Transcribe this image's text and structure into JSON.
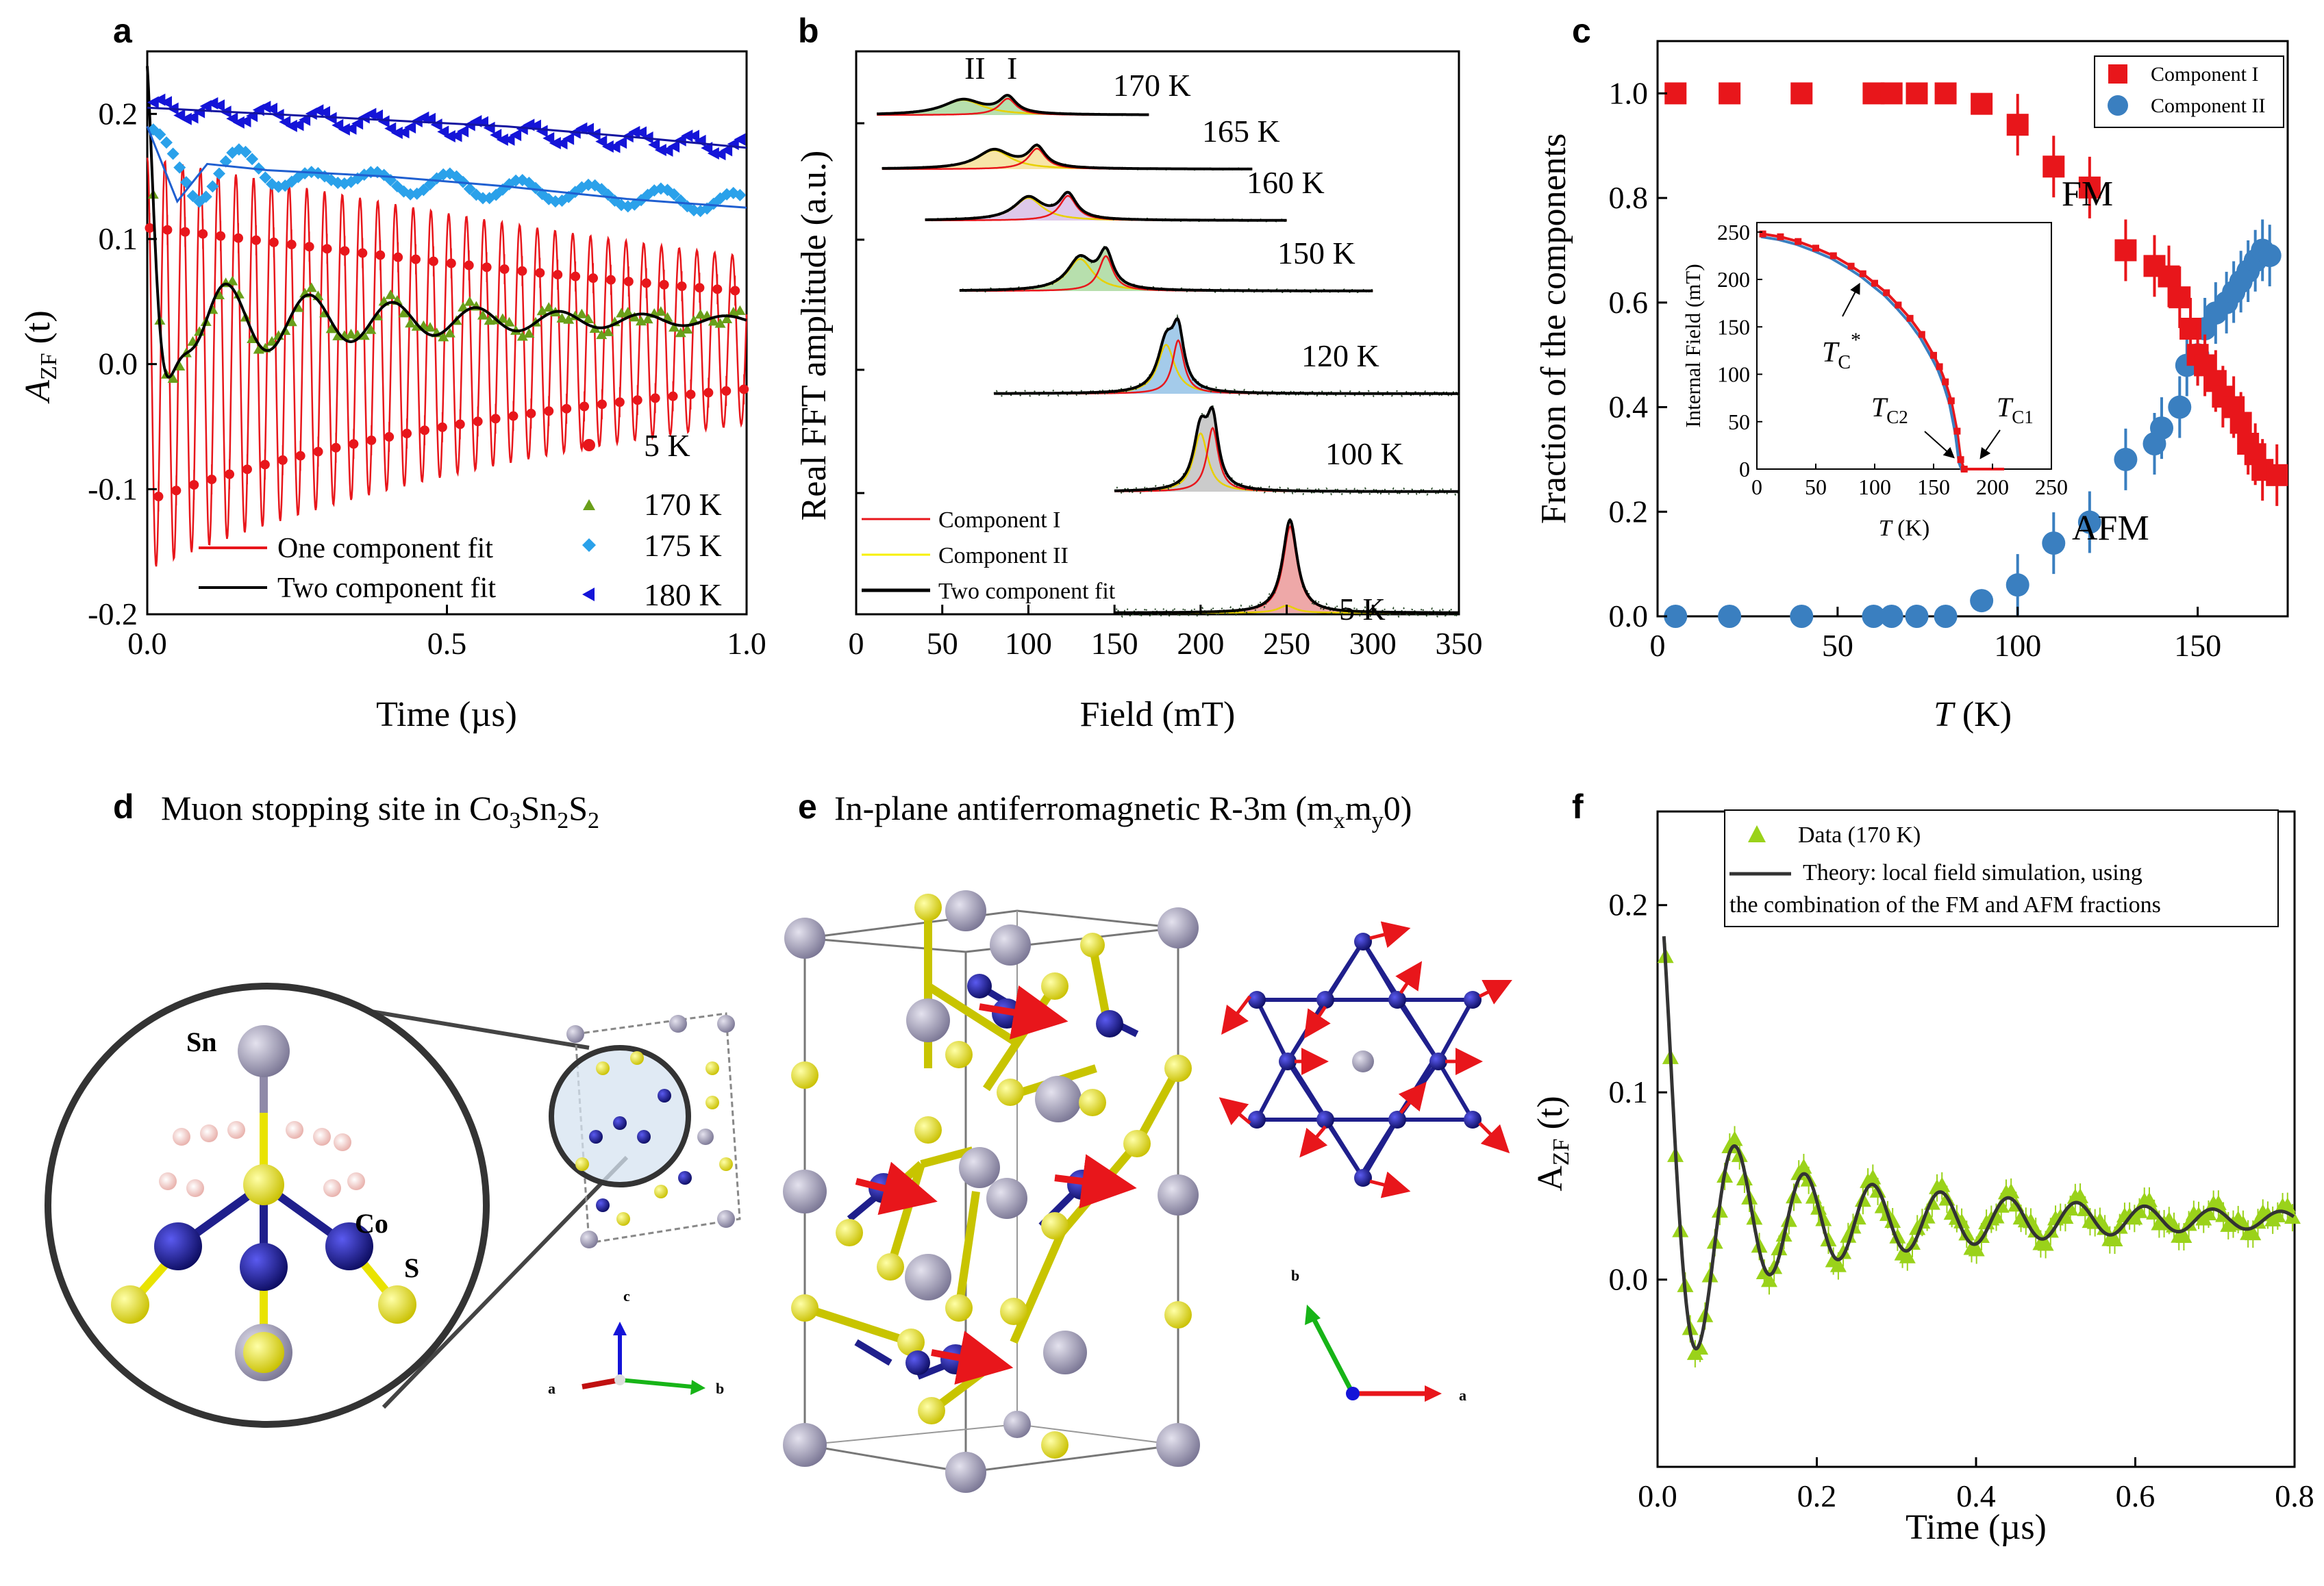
{
  "panel_letters": {
    "a": "a",
    "b": "b",
    "c": "c",
    "d": "d",
    "e": "e",
    "f": "f"
  },
  "colors": {
    "red": "#e8161b",
    "black": "#000000",
    "green": "#6a9f1a",
    "cyan": "#2aa1ea",
    "blue": "#1414d8",
    "yellow": "#f7f000",
    "steel": "#3a7fc0",
    "lime": "#9ad21a",
    "cobalt": "#1f1f8c",
    "sn": "#9a96b4",
    "s": "#e9e300"
  },
  "chart_data": [
    {
      "id": "a",
      "type": "line",
      "ylabel_main": "A",
      "ylabel_sub": "ZF",
      "ylabel_tail": " (t)",
      "xlabel": "Time (µs)",
      "xlim": [
        0,
        1
      ],
      "ylim": [
        -0.2,
        0.25
      ],
      "xticks": [
        "0.0",
        "0.5",
        "1.0"
      ],
      "yticks": [
        "-0.2",
        "-0.1",
        "0.0",
        "0.1",
        "0.2"
      ],
      "series": [
        {
          "name": "5 K",
          "marker": "circle",
          "color": "#e8161b",
          "model": {
            "amp": 0.165,
            "freq": 33.8,
            "decay": 0.9,
            "offset": 0.0
          }
        },
        {
          "name": "170 K",
          "marker": "triangle",
          "color": "#6a9f1a",
          "model": "two-component"
        },
        {
          "name": "175 K",
          "marker": "diamond",
          "color": "#2aa1ea",
          "points": [
            [
              0.0,
              0.19
            ],
            [
              0.05,
              0.13
            ],
            [
              0.1,
              0.16
            ],
            [
              0.2,
              0.155
            ],
            [
              0.4,
              0.15
            ],
            [
              0.6,
              0.142
            ],
            [
              0.8,
              0.132
            ],
            [
              1.0,
              0.125
            ]
          ]
        },
        {
          "name": "180 K",
          "marker": "left-triangle",
          "color": "#1414d8",
          "points": [
            [
              0.0,
              0.205
            ],
            [
              0.2,
              0.2
            ],
            [
              0.4,
              0.195
            ],
            [
              0.6,
              0.19
            ],
            [
              0.8,
              0.182
            ],
            [
              1.0,
              0.173
            ]
          ]
        }
      ],
      "fit_legend": [
        {
          "name": "One component fit",
          "color": "#e8161b"
        },
        {
          "name": "Two component fit",
          "color": "#000000"
        }
      ]
    },
    {
      "id": "b",
      "type": "line",
      "ylabel": "Real FFT amplitude (a.u.)",
      "xlabel": "Field (mT)",
      "xlim": [
        0,
        350
      ],
      "xticks": [
        "0",
        "50",
        "100",
        "150",
        "200",
        "250",
        "300",
        "350"
      ],
      "peak_labels": [
        "II",
        "I"
      ],
      "spectra": [
        {
          "label": "170 K",
          "peaks": [
            62,
            88
          ],
          "range": [
            12,
            170
          ]
        },
        {
          "label": "165 K",
          "peaks": [
            80,
            105
          ],
          "range": [
            15,
            230
          ]
        },
        {
          "label": "160 K",
          "peaks": [
            100,
            123
          ],
          "range": [
            40,
            250
          ]
        },
        {
          "label": "150 K",
          "peaks": [
            130,
            145
          ],
          "range": [
            60,
            300
          ]
        },
        {
          "label": "120 K",
          "peaks": [
            180,
            187
          ],
          "range": [
            80,
            350
          ]
        },
        {
          "label": "100 K",
          "peaks": [
            200,
            207
          ],
          "range": [
            150,
            350
          ]
        },
        {
          "label": "5 K",
          "peaks": [
            250,
            252
          ],
          "range": [
            150,
            350
          ]
        }
      ],
      "legend": [
        {
          "name": "Component I",
          "color": "#e8161b"
        },
        {
          "name": "Component II",
          "color": "#f7f000"
        },
        {
          "name": "Two component fit",
          "color": "#000000"
        }
      ]
    },
    {
      "id": "c",
      "type": "scatter",
      "ylabel": "Fraction of the components",
      "xlabel_italic": "T",
      "xlabel_rest": " (K)",
      "xlim": [
        0,
        175
      ],
      "ylim": [
        0,
        1.1
      ],
      "xticks": [
        "0",
        "50",
        "100",
        "150"
      ],
      "yticks": [
        "0.0",
        "0.2",
        "0.4",
        "0.6",
        "0.8",
        "1.0"
      ],
      "series": [
        {
          "name": "Component I",
          "marker": "square",
          "color": "#e8161b",
          "points": [
            [
              5,
              1.0
            ],
            [
              20,
              1.0
            ],
            [
              40,
              1.0
            ],
            [
              60,
              1.0
            ],
            [
              65,
              1.0
            ],
            [
              72,
              1.0
            ],
            [
              80,
              1.0
            ],
            [
              90,
              0.98
            ],
            [
              100,
              0.94
            ],
            [
              110,
              0.86
            ],
            [
              120,
              0.82
            ],
            [
              130,
              0.7
            ],
            [
              138,
              0.67
            ],
            [
              142,
              0.65
            ],
            [
              145,
              0.61
            ],
            [
              148,
              0.55
            ],
            [
              150,
              0.5
            ],
            [
              152,
              0.48
            ],
            [
              155,
              0.45
            ],
            [
              157,
              0.42
            ],
            [
              160,
              0.4
            ],
            [
              162,
              0.37
            ],
            [
              164,
              0.33
            ],
            [
              166,
              0.31
            ],
            [
              168,
              0.28
            ],
            [
              172,
              0.27
            ]
          ]
        },
        {
          "name": "Component II",
          "marker": "circle",
          "color": "#3a7fc0",
          "points": [
            [
              5,
              0.0
            ],
            [
              20,
              0.0
            ],
            [
              40,
              0.0
            ],
            [
              60,
              0.0
            ],
            [
              65,
              0.0
            ],
            [
              72,
              0.0
            ],
            [
              80,
              0.0
            ],
            [
              90,
              0.03
            ],
            [
              100,
              0.06
            ],
            [
              110,
              0.14
            ],
            [
              120,
              0.18
            ],
            [
              130,
              0.3
            ],
            [
              138,
              0.33
            ],
            [
              140,
              0.36
            ],
            [
              145,
              0.4
            ],
            [
              147,
              0.48
            ],
            [
              150,
              0.5
            ],
            [
              152,
              0.55
            ],
            [
              155,
              0.58
            ],
            [
              158,
              0.6
            ],
            [
              160,
              0.62
            ],
            [
              162,
              0.64
            ],
            [
              164,
              0.66
            ],
            [
              166,
              0.68
            ],
            [
              168,
              0.7
            ],
            [
              170,
              0.69
            ]
          ]
        }
      ],
      "annotations": {
        "fm": "FM",
        "afm": "AFM"
      },
      "inset": {
        "ylabel": "Internal Field (mT)",
        "xlabel_italic": "T",
        "xlabel_rest": " (K)",
        "xlim": [
          0,
          250
        ],
        "ylim": [
          0,
          260
        ],
        "xticks": [
          "0",
          "50",
          "100",
          "150",
          "200",
          "250"
        ],
        "yticks": [
          "0",
          "50",
          "100",
          "150",
          "200",
          "250"
        ],
        "points": [
          [
            5,
            248
          ],
          [
            20,
            245
          ],
          [
            35,
            240
          ],
          [
            50,
            233
          ],
          [
            65,
            225
          ],
          [
            80,
            214
          ],
          [
            90,
            206
          ],
          [
            100,
            196
          ],
          [
            110,
            186
          ],
          [
            120,
            173
          ],
          [
            130,
            159
          ],
          [
            140,
            142
          ],
          [
            150,
            120
          ],
          [
            155,
            108
          ],
          [
            160,
            92
          ],
          [
            165,
            72
          ],
          [
            170,
            40
          ],
          [
            173,
            10
          ],
          [
            176,
            0
          ]
        ],
        "labels": {
          "tc_star": "T",
          "tc_star_sub": "C",
          "tc_star_sup": "*",
          "tc2": "T",
          "tc2_sub": "C2",
          "tc1": "T",
          "tc1_sub": "C1"
        }
      }
    },
    {
      "id": "f",
      "type": "line",
      "ylabel_main": "A",
      "ylabel_sub": "ZF",
      "ylabel_tail": " (t)",
      "xlabel": "Time (µs)",
      "xlim": [
        0,
        0.8
      ],
      "ylim": [
        -0.1,
        0.25
      ],
      "xticks": [
        "0.0",
        "0.2",
        "0.4",
        "0.6",
        "0.8"
      ],
      "yticks": [
        "0.0",
        "0.1",
        "0.2"
      ],
      "legend": {
        "data": "Data (170 K)",
        "theory_line1": "Theory: local field simulation, using",
        "theory_line2": "the combination of the FM and AFM fractions"
      }
    }
  ],
  "panel_d": {
    "title_main": "Muon stopping site in Co",
    "title_sub1": "3",
    "title_mid": "Sn",
    "title_sub2": "2",
    "title_end": "S",
    "title_sub3": "2",
    "sn": "Sn",
    "co": "Co",
    "s": "S",
    "axes": {
      "a": "a",
      "b": "b",
      "c": "c"
    }
  },
  "panel_e": {
    "title_a": "In-plane antiferromagnetic R-3m (m",
    "title_x": "x",
    "title_m": "m",
    "title_y": "y",
    "title_end": "0)",
    "axes": {
      "a": "a",
      "b": "b"
    }
  }
}
